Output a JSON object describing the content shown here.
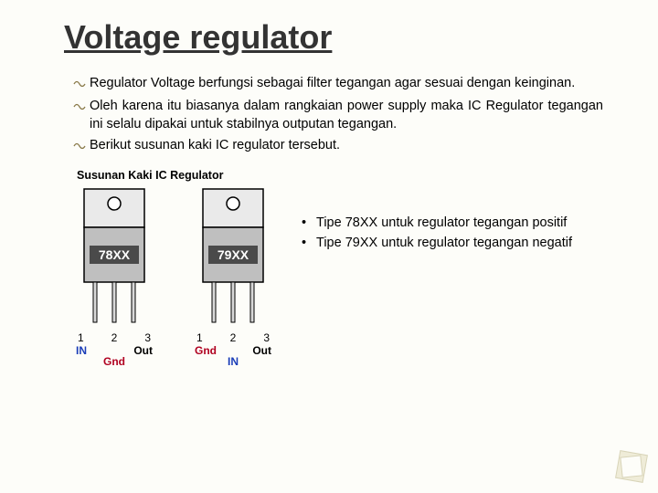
{
  "title": "Voltage regulator",
  "bullets": [
    "Regulator Voltage berfungsi sebagai filter tegangan agar sesuai dengan keinginan.",
    "Oleh karena itu biasanya dalam rangkaian power supply maka IC Regulator tegangan ini selalu dipakai untuk stabilnya outputan tegangan.",
    "Berikut susunan kaki IC regulator tersebut."
  ],
  "diagram": {
    "caption": "Susunan Kaki IC Regulator",
    "ic": [
      {
        "label": "78XX",
        "body_fill": "#bfbfbf",
        "tab_fill": "#eaeaea",
        "label_bg": "#4a4a4a",
        "label_color": "#ffffff",
        "pins": [
          "1",
          "2",
          "3"
        ],
        "pin_top": {
          "left": "IN",
          "right": "Out",
          "left_color": "#1a3db8",
          "right_color": "#000000"
        },
        "pin_bottom": {
          "text": "Gnd",
          "color": "#b00020"
        }
      },
      {
        "label": "79XX",
        "body_fill": "#bfbfbf",
        "tab_fill": "#eaeaea",
        "label_bg": "#4a4a4a",
        "label_color": "#ffffff",
        "pins": [
          "1",
          "2",
          "3"
        ],
        "pin_top": {
          "left": "Gnd",
          "right": "Out",
          "left_color": "#b00020",
          "right_color": "#000000"
        },
        "pin_bottom": {
          "text": "IN",
          "color": "#1a3db8"
        }
      }
    ]
  },
  "notes": [
    "Tipe 78XX untuk regulator tegangan positif",
    "Tipe 79XX untuk regulator tegangan negatif"
  ],
  "colors": {
    "bullet_stroke": "#8a7a4a",
    "corner_outer": "#d8d4b8",
    "corner_inner": "#efecd8"
  }
}
